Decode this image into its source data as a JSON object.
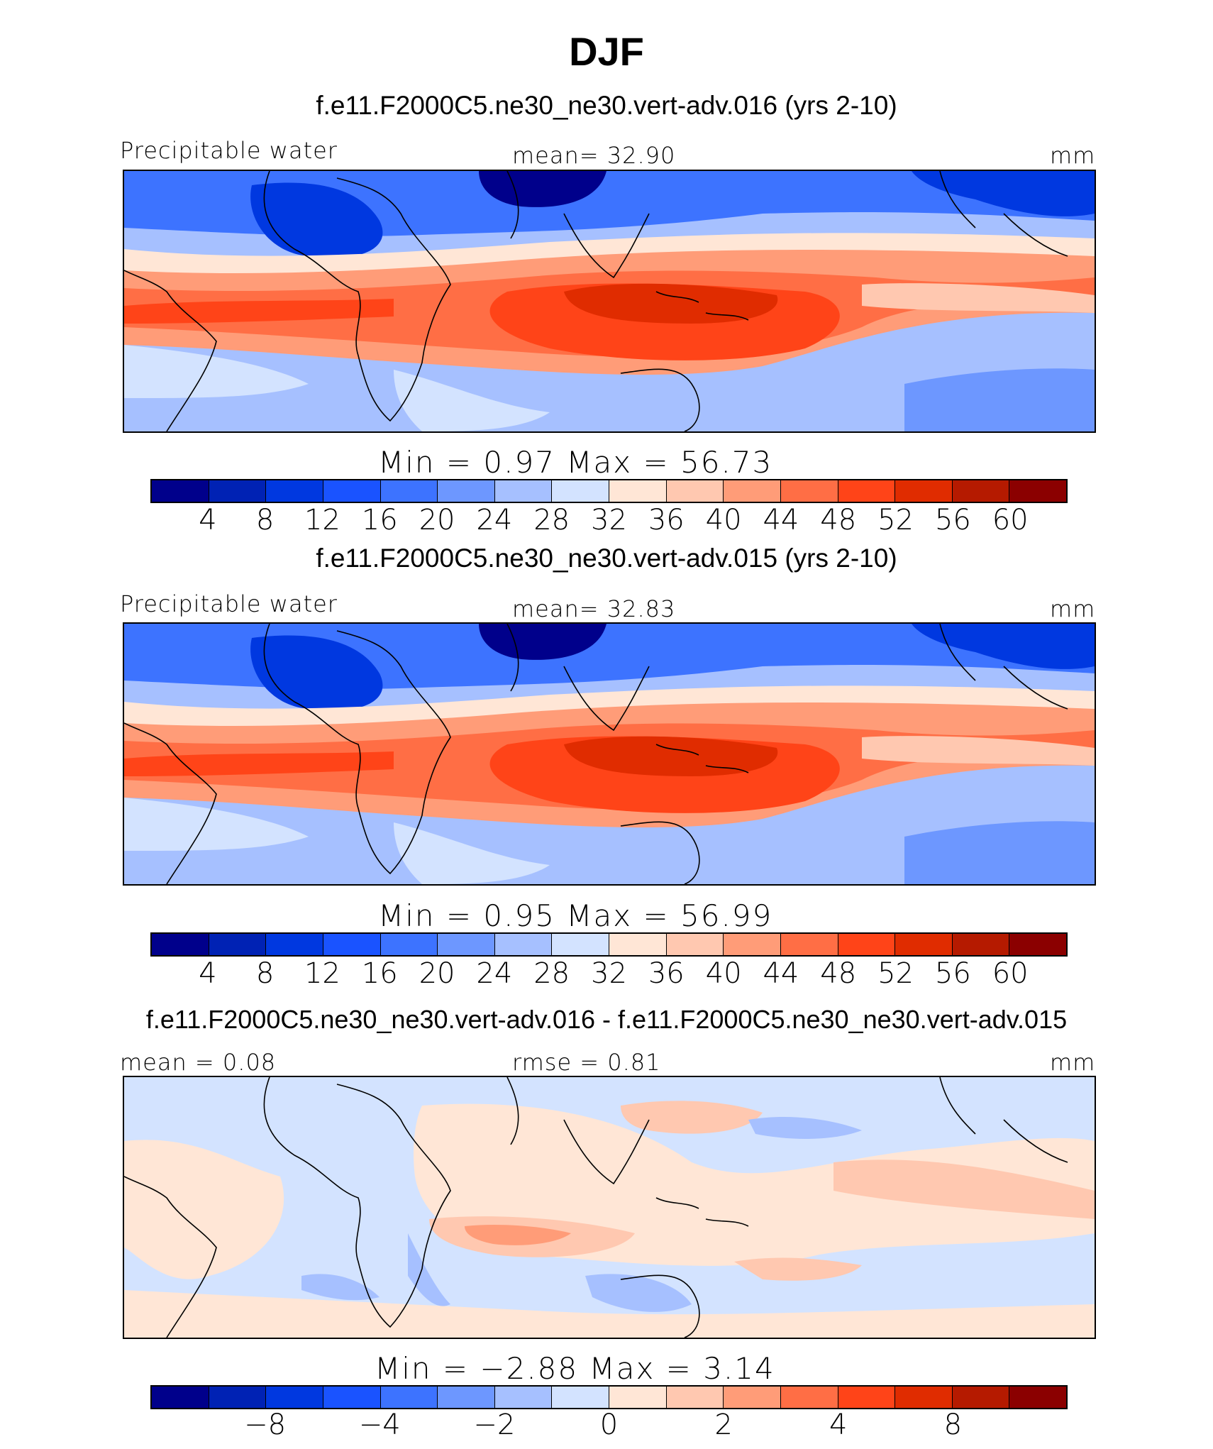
{
  "title": "DJF",
  "colors": [
    "#00008b",
    "#0022b4",
    "#0038e0",
    "#1a53ff",
    "#3d73ff",
    "#6d97ff",
    "#a6c0ff",
    "#d3e3ff",
    "#ffe6d6",
    "#ffc8b0",
    "#ff9c78",
    "#ff6e45",
    "#ff4418",
    "#e02c00",
    "#b51a00",
    "#8b0000"
  ],
  "panels": [
    {
      "title": "f.e11.F2000C5.ne30_ne30.vert-adv.016 (yrs 2-10)",
      "left_label": "Precipitable water",
      "center_label": "mean=   32.90",
      "right_label": "mm",
      "minmax": "Min  =    0.97  Max  =   56.73",
      "ticks": [
        "4",
        "8",
        "12",
        "16",
        "20",
        "24",
        "28",
        "32",
        "36",
        "40",
        "44",
        "48",
        "52",
        "56",
        "60"
      ]
    },
    {
      "title": "f.e11.F2000C5.ne30_ne30.vert-adv.015 (yrs 2-10)",
      "left_label": "Precipitable water",
      "center_label": "mean=   32.83",
      "right_label": "mm",
      "minmax": "Min  =    0.95  Max  =   56.99",
      "ticks": [
        "4",
        "8",
        "12",
        "16",
        "20",
        "24",
        "28",
        "32",
        "36",
        "40",
        "44",
        "48",
        "52",
        "56",
        "60"
      ]
    },
    {
      "title": "f.e11.F2000C5.ne30_ne30.vert-adv.016 - f.e11.F2000C5.ne30_ne30.vert-adv.015",
      "left_label": "mean =    0.08",
      "center_label": "rmse =    0.81",
      "right_label": "mm",
      "minmax": "Min  =  −2.88  Max  =    3.14",
      "ticks": [
        "−8",
        "−4",
        "−2",
        "0",
        "2",
        "4",
        "8"
      ]
    }
  ],
  "chart_data": [
    {
      "type": "heatmap",
      "title": "f.e11.F2000C5.ne30_ne30.vert-adv.016 (yrs 2-10)",
      "variable": "Precipitable water",
      "units": "mm",
      "mean": 32.9,
      "min": 0.97,
      "max": 56.73,
      "levels": [
        4,
        8,
        12,
        16,
        20,
        24,
        28,
        32,
        36,
        40,
        44,
        48,
        52,
        56,
        60
      ]
    },
    {
      "type": "heatmap",
      "title": "f.e11.F2000C5.ne30_ne30.vert-adv.015 (yrs 2-10)",
      "variable": "Precipitable water",
      "units": "mm",
      "mean": 32.83,
      "min": 0.95,
      "max": 56.99,
      "levels": [
        4,
        8,
        12,
        16,
        20,
        24,
        28,
        32,
        36,
        40,
        44,
        48,
        52,
        56,
        60
      ]
    },
    {
      "type": "heatmap",
      "title": "f.e11.F2000C5.ne30_ne30.vert-adv.016 - f.e11.F2000C5.ne30_ne30.vert-adv.015",
      "units": "mm",
      "mean": 0.08,
      "rmse": 0.81,
      "min": -2.88,
      "max": 3.14,
      "levels": [
        -8,
        -4,
        -2,
        0,
        2,
        4,
        8
      ]
    }
  ]
}
